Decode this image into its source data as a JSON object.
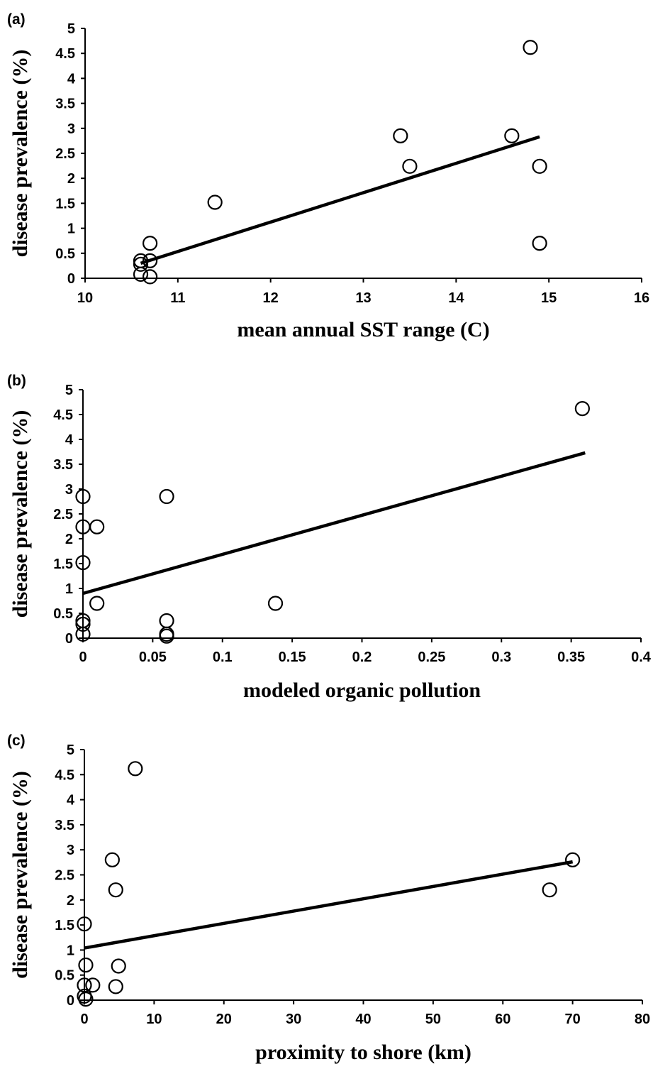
{
  "chart_data": [
    {
      "panel": "(a)",
      "type": "scatter",
      "xlabel": "mean annual SST range (C)",
      "ylabel": "disease prevalence (%)",
      "xlim": [
        10,
        16
      ],
      "ylim": [
        0,
        5
      ],
      "xticks": [
        "10",
        "11",
        "12",
        "13",
        "14",
        "15",
        "16"
      ],
      "yticks": [
        "0",
        "0.5",
        "1",
        "1.5",
        "2",
        "2.5",
        "3",
        "3.5",
        "4",
        "4.5",
        "5"
      ],
      "points": [
        [
          10.6,
          0.35
        ],
        [
          10.6,
          0.28
        ],
        [
          10.6,
          0.08
        ],
        [
          10.7,
          0.7
        ],
        [
          10.7,
          0.35
        ],
        [
          10.7,
          0.03
        ],
        [
          11.4,
          1.52
        ],
        [
          13.4,
          2.85
        ],
        [
          13.5,
          2.24
        ],
        [
          14.6,
          2.85
        ],
        [
          14.8,
          4.62
        ],
        [
          14.9,
          2.24
        ],
        [
          14.9,
          0.7
        ]
      ],
      "trendline": [
        [
          10.6,
          0.3
        ],
        [
          14.9,
          2.83
        ]
      ]
    },
    {
      "panel": "(b)",
      "type": "scatter",
      "xlabel": "modeled organic pollution",
      "ylabel": "disease prevalence (%)",
      "xlim": [
        0,
        0.4
      ],
      "ylim": [
        0,
        5
      ],
      "xticks": [
        "0",
        "0.05",
        "0.1",
        "0.15",
        "0.2",
        "0.25",
        "0.3",
        "0.35",
        "0.4"
      ],
      "yticks": [
        "0",
        "0.5",
        "1",
        "1.5",
        "2",
        "2.5",
        "3",
        "3.5",
        "4",
        "4.5",
        "5"
      ],
      "points": [
        [
          0,
          2.85
        ],
        [
          0,
          2.24
        ],
        [
          0,
          1.52
        ],
        [
          0,
          0.35
        ],
        [
          0,
          0.28
        ],
        [
          0,
          0.08
        ],
        [
          0.01,
          2.24
        ],
        [
          0.01,
          0.7
        ],
        [
          0.06,
          2.85
        ],
        [
          0.06,
          0.35
        ],
        [
          0.06,
          0.08
        ],
        [
          0.06,
          0.04
        ],
        [
          0.138,
          0.7
        ],
        [
          0.358,
          4.62
        ]
      ],
      "trendline": [
        [
          0,
          0.9
        ],
        [
          0.36,
          3.73
        ]
      ]
    },
    {
      "panel": "(c)",
      "type": "scatter",
      "xlabel": "proximity to shore (km)",
      "ylabel": "disease prevalence (%)",
      "xlim": [
        0,
        80
      ],
      "ylim": [
        0,
        5
      ],
      "xticks": [
        "0",
        "10",
        "20",
        "30",
        "40",
        "50",
        "60",
        "70",
        "80"
      ],
      "yticks": [
        "0",
        "0.5",
        "1",
        "1.5",
        "2",
        "2.5",
        "3",
        "3.5",
        "4",
        "4.5",
        "5"
      ],
      "points": [
        [
          0,
          1.52
        ],
        [
          0.2,
          0.7
        ],
        [
          0,
          0.3
        ],
        [
          0,
          0.08
        ],
        [
          0.2,
          0.02
        ],
        [
          1.2,
          0.3
        ],
        [
          4,
          2.8
        ],
        [
          4.5,
          2.2
        ],
        [
          4.5,
          0.27
        ],
        [
          4.9,
          0.68
        ],
        [
          7.3,
          4.62
        ],
        [
          66.7,
          2.2
        ],
        [
          70,
          2.8
        ]
      ],
      "trendline": [
        [
          0,
          1.04
        ],
        [
          70,
          2.76
        ]
      ]
    }
  ]
}
